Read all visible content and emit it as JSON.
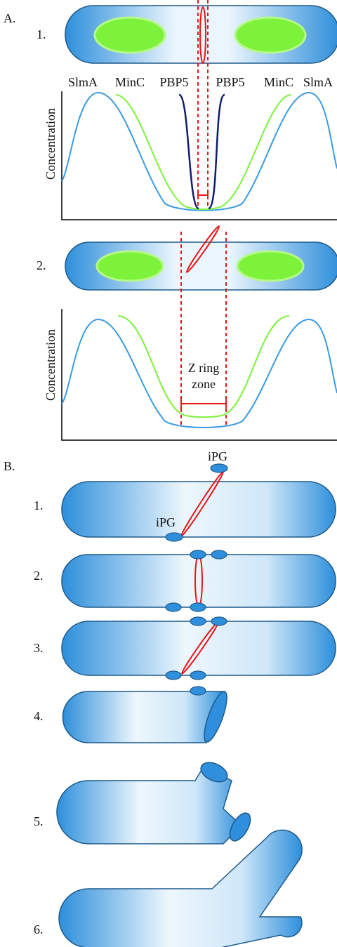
{
  "panel_a": {
    "label": "A.",
    "parts": [
      {
        "label": "1.",
        "curve_labels": [
          "SlmA",
          "MinC",
          "PBP5",
          "PBP5",
          "MinC",
          "SlmA"
        ],
        "y_axis_label": "Concentration"
      },
      {
        "label": "2.",
        "y_axis_label": "Concentration",
        "zone_label": [
          "Z ring",
          "zone"
        ]
      }
    ]
  },
  "panel_b": {
    "label": "B.",
    "steps": [
      {
        "label": "1.",
        "annotations": [
          "iPG",
          "iPG"
        ]
      },
      {
        "label": "2."
      },
      {
        "label": "3."
      },
      {
        "label": "4."
      },
      {
        "label": "5."
      },
      {
        "label": "6."
      }
    ]
  }
}
